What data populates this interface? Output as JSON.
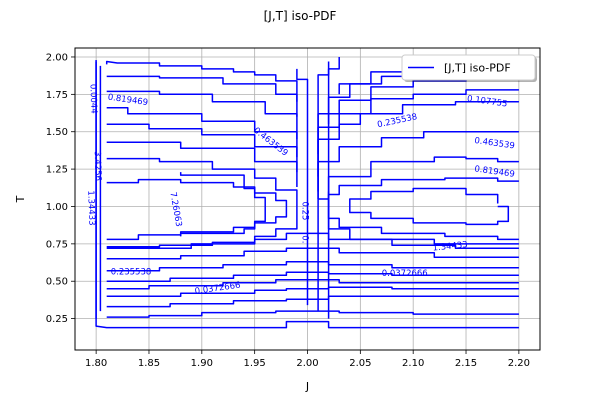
{
  "chart_data": {
    "type": "contour",
    "title": "[J,T] iso-PDF",
    "xlabel": "J",
    "ylabel": "T",
    "xlim": [
      1.78,
      2.22
    ],
    "ylim": [
      0.04,
      2.06
    ],
    "x_ticks": [
      "1.80",
      "1.85",
      "1.90",
      "1.95",
      "2.00",
      "2.05",
      "2.10",
      "2.15",
      "2.20"
    ],
    "y_ticks": [
      "0.25",
      "0.50",
      "0.75",
      "1.00",
      "1.25",
      "1.50",
      "1.75",
      "2.00"
    ],
    "grid": true,
    "legend": {
      "position": "top-right",
      "entries": [
        "[J,T] iso-PDF"
      ]
    },
    "series_color": "#0000ff",
    "contour_labels": [
      {
        "text": "0.819469",
        "x": 1.83,
        "y": 1.71,
        "angle": 8
      },
      {
        "text": "0.107755",
        "x": 2.17,
        "y": 1.7,
        "angle": 8
      },
      {
        "text": "0.463539",
        "x": 1.965,
        "y": 1.43,
        "angle": 38
      },
      {
        "text": "0.235538",
        "x": 2.085,
        "y": 1.57,
        "angle": -12
      },
      {
        "text": "0.463539",
        "x": 2.177,
        "y": 1.42,
        "angle": 8
      },
      {
        "text": "0.819469",
        "x": 2.177,
        "y": 1.23,
        "angle": 8
      },
      {
        "text": "7.26063",
        "x": 1.875,
        "y": 0.98,
        "angle": 80
      },
      {
        "text": "1.34433",
        "x": 2.135,
        "y": 0.73,
        "angle": -6
      },
      {
        "text": "0.235538",
        "x": 1.833,
        "y": 0.56,
        "angle": 0
      },
      {
        "text": "0.0372666",
        "x": 1.915,
        "y": 0.45,
        "angle": -8
      },
      {
        "text": "0.0372666",
        "x": 2.092,
        "y": 0.55,
        "angle": 0
      },
      {
        "text": "1.34433",
        "x": 1.795,
        "y": 0.99,
        "angle": 88
      },
      {
        "text": "3.4256",
        "x": 1.801,
        "y": 1.27,
        "angle": 88
      },
      {
        "text": "0.0044",
        "x": 1.797,
        "y": 1.72,
        "angle": 88
      },
      {
        "text": "0.25",
        "x": 1.997,
        "y": 0.97,
        "angle": 90
      },
      {
        "text": "0.",
        "x": 1.997,
        "y": 0.78,
        "angle": 90
      }
    ],
    "contours": [
      {
        "x": [
          1.8,
          1.8,
          1.81,
          1.98,
          1.98,
          2.02,
          2.02,
          2.2
        ],
        "y": [
          1.97,
          0.2,
          0.19,
          0.19,
          0.23,
          0.23,
          0.19,
          0.19
        ]
      },
      {
        "x": [
          1.81,
          1.85,
          1.85,
          1.9,
          1.9,
          1.97,
          1.97,
          2.03,
          2.03,
          2.1,
          2.1,
          2.2
        ],
        "y": [
          0.26,
          0.26,
          0.27,
          0.27,
          0.29,
          0.29,
          0.3,
          0.3,
          0.29,
          0.29,
          0.28,
          0.28
        ]
      },
      {
        "x": [
          1.81,
          1.87,
          1.87,
          1.93,
          1.93,
          1.98,
          1.98,
          2.02,
          2.02,
          2.2
        ],
        "y": [
          0.33,
          0.33,
          0.35,
          0.35,
          0.37,
          0.37,
          0.38,
          0.38,
          0.4,
          0.4
        ]
      },
      {
        "x": [
          1.81,
          1.88,
          1.88,
          1.95,
          1.95,
          1.98,
          1.98,
          2.02,
          2.02,
          2.08,
          2.08,
          2.2
        ],
        "y": [
          0.4,
          0.4,
          0.42,
          0.42,
          0.44,
          0.44,
          0.45,
          0.45,
          0.46,
          0.46,
          0.45,
          0.45
        ]
      },
      {
        "x": [
          1.81,
          1.85,
          1.85,
          1.92,
          1.92,
          1.97,
          1.97,
          2.03,
          2.03,
          2.2
        ],
        "y": [
          0.45,
          0.45,
          0.47,
          0.47,
          0.49,
          0.49,
          0.51,
          0.51,
          0.49,
          0.49
        ]
      },
      {
        "x": [
          1.81,
          1.87,
          1.87,
          1.93,
          1.93,
          1.98,
          1.98,
          2.02,
          2.02,
          2.08,
          2.08,
          2.2
        ],
        "y": [
          0.5,
          0.5,
          0.52,
          0.52,
          0.54,
          0.54,
          0.56,
          0.56,
          0.55,
          0.55,
          0.54,
          0.54
        ]
      },
      {
        "x": [
          1.81,
          1.86,
          1.86,
          1.92,
          1.92,
          1.98,
          1.98,
          2.02,
          2.02,
          2.08,
          2.08,
          2.2
        ],
        "y": [
          0.57,
          0.57,
          0.59,
          0.59,
          0.61,
          0.61,
          0.63,
          0.63,
          0.61,
          0.61,
          0.59,
          0.59
        ]
      },
      {
        "x": [
          1.81,
          1.88,
          1.88,
          1.94,
          1.94,
          1.98,
          1.98,
          2.03,
          2.03,
          2.12,
          2.12,
          2.2
        ],
        "y": [
          0.65,
          0.65,
          0.67,
          0.67,
          0.7,
          0.7,
          0.72,
          0.72,
          0.69,
          0.69,
          0.66,
          0.66
        ]
      },
      {
        "x": [
          1.81,
          1.89,
          1.89,
          1.95,
          1.95,
          1.98,
          1.98,
          2.02,
          2.02,
          2.12,
          2.12,
          2.2
        ],
        "y": [
          0.72,
          0.72,
          0.75,
          0.75,
          0.78,
          0.78,
          0.82,
          0.82,
          0.78,
          0.78,
          0.75,
          0.75
        ]
      },
      {
        "x": [
          1.81,
          1.88,
          1.88,
          1.95,
          1.95,
          1.99,
          1.99
        ],
        "y": [
          1.43,
          1.43,
          1.39,
          1.39,
          1.3,
          1.3,
          1.13
        ]
      },
      {
        "x": [
          1.81,
          1.85,
          1.85,
          1.9,
          1.9,
          1.95,
          1.95,
          1.99,
          1.99
        ],
        "y": [
          1.55,
          1.55,
          1.52,
          1.52,
          1.48,
          1.48,
          1.4,
          1.4,
          1.23
        ]
      },
      {
        "x": [
          1.81,
          1.83,
          1.83,
          1.9,
          1.9,
          1.95,
          1.95,
          1.99,
          1.99
        ],
        "y": [
          1.66,
          1.66,
          1.62,
          1.62,
          1.57,
          1.57,
          1.5,
          1.5,
          1.33
        ]
      },
      {
        "x": [
          1.81,
          1.86,
          1.86,
          1.91,
          1.91,
          1.96,
          1.96,
          1.99,
          1.99
        ],
        "y": [
          1.77,
          1.77,
          1.75,
          1.75,
          1.7,
          1.7,
          1.62,
          1.62,
          1.45
        ]
      },
      {
        "x": [
          1.81,
          1.86,
          1.86,
          1.92,
          1.92,
          1.97,
          1.97,
          1.99,
          1.99
        ],
        "y": [
          1.87,
          1.87,
          1.86,
          1.86,
          1.82,
          1.82,
          1.75,
          1.75,
          1.6
        ]
      },
      {
        "x": [
          1.81,
          1.81,
          1.82,
          1.86,
          1.86,
          1.9,
          1.9,
          1.93,
          1.93,
          1.95,
          1.95,
          1.97,
          1.97,
          1.99,
          1.99
        ],
        "y": [
          1.95,
          1.97,
          1.96,
          1.96,
          1.94,
          1.94,
          1.92,
          1.92,
          1.9,
          1.9,
          1.88,
          1.88,
          1.84,
          1.84,
          1.7
        ]
      },
      {
        "x": [
          1.88,
          1.88,
          1.94,
          1.94,
          1.95,
          1.95,
          1.96,
          1.96,
          1.95,
          1.95,
          1.94,
          1.94,
          1.88,
          1.88
        ],
        "y": [
          1.23,
          1.21,
          1.21,
          1.12,
          1.12,
          1.06,
          1.06,
          0.9,
          0.9,
          0.85,
          0.85,
          0.82,
          0.82,
          0.8
        ]
      },
      {
        "x": [
          1.81,
          1.84,
          1.84,
          1.88,
          1.88,
          1.93,
          1.93,
          1.95,
          1.95,
          1.97,
          1.97,
          1.98,
          1.98,
          1.97,
          1.97,
          1.95,
          1.95,
          1.93,
          1.93,
          1.88,
          1.88,
          1.84,
          1.84,
          1.81
        ],
        "y": [
          1.16,
          1.16,
          1.18,
          1.18,
          1.16,
          1.16,
          1.13,
          1.13,
          1.09,
          1.09,
          1.04,
          1.04,
          0.93,
          0.93,
          0.89,
          0.89,
          0.86,
          0.86,
          0.83,
          0.83,
          0.81,
          0.81,
          0.78,
          0.78
        ]
      },
      {
        "x": [
          1.81,
          1.86,
          1.86,
          1.91,
          1.91,
          1.95,
          1.95,
          1.97,
          1.97,
          1.99,
          1.99,
          1.97,
          1.97,
          1.95,
          1.95,
          1.91,
          1.91,
          1.86,
          1.86,
          1.81
        ],
        "y": [
          1.32,
          1.32,
          1.3,
          1.3,
          1.25,
          1.25,
          1.19,
          1.19,
          1.11,
          1.11,
          0.85,
          0.85,
          0.8,
          0.8,
          0.76,
          0.76,
          0.74,
          0.74,
          0.73,
          0.73
        ]
      },
      {
        "x": [
          1.99,
          1.99,
          2.0,
          2.0
        ],
        "y": [
          1.92,
          1.85,
          1.85,
          0.34
        ]
      },
      {
        "x": [
          2.02,
          2.02,
          2.01,
          2.01
        ],
        "y": [
          1.97,
          1.88,
          1.88,
          0.3
        ]
      },
      {
        "x": [
          2.03,
          2.03,
          2.02,
          2.02
        ],
        "y": [
          2.0,
          1.92,
          1.92,
          0.25
        ]
      },
      {
        "x": [
          2.01,
          2.01,
          2.03,
          2.03,
          2.05,
          2.05,
          2.09,
          2.09,
          2.14,
          2.14,
          2.2
        ],
        "y": [
          1.1,
          1.45,
          1.45,
          1.55,
          1.55,
          1.62,
          1.62,
          1.68,
          1.68,
          1.7,
          1.7
        ]
      },
      {
        "x": [
          2.01,
          2.01,
          2.03,
          2.03,
          2.06,
          2.06,
          2.1,
          2.1,
          2.15,
          2.15,
          2.2
        ],
        "y": [
          1.2,
          1.53,
          1.53,
          1.62,
          1.62,
          1.72,
          1.72,
          1.75,
          1.75,
          1.78,
          1.78
        ]
      },
      {
        "x": [
          2.01,
          2.01,
          2.03,
          2.03,
          2.06,
          2.06,
          2.1,
          2.1,
          2.15,
          2.15,
          2.2
        ],
        "y": [
          1.35,
          1.62,
          1.62,
          1.71,
          1.71,
          1.8,
          1.8,
          1.84,
          1.84,
          1.86,
          1.86
        ]
      },
      {
        "x": [
          2.02,
          2.02,
          2.04,
          2.04,
          2.07,
          2.07,
          2.12,
          2.12,
          2.2
        ],
        "y": [
          1.55,
          1.73,
          1.73,
          1.82,
          1.82,
          1.87,
          1.87,
          1.92,
          1.92
        ]
      },
      {
        "x": [
          2.03,
          2.03,
          2.06,
          2.06,
          2.1,
          2.1,
          2.14,
          2.14
        ],
        "y": [
          1.75,
          1.82,
          1.82,
          1.9,
          1.9,
          1.94,
          1.94,
          1.96
        ]
      },
      {
        "x": [
          2.01,
          2.01,
          2.03,
          2.03,
          2.07,
          2.07,
          2.11,
          2.11,
          2.16,
          2.16,
          2.2
        ],
        "y": [
          1.05,
          1.3,
          1.3,
          1.4,
          1.4,
          1.46,
          1.46,
          1.5,
          1.5,
          1.5,
          1.5
        ]
      },
      {
        "x": [
          2.01,
          2.02,
          2.02,
          2.06,
          2.06,
          2.12,
          2.12,
          2.15,
          2.15,
          2.18,
          2.18,
          2.2
        ],
        "y": [
          1.05,
          1.05,
          1.2,
          1.2,
          1.3,
          1.3,
          1.33,
          1.33,
          1.32,
          1.32,
          1.3,
          1.3
        ]
      },
      {
        "x": [
          2.2,
          2.18,
          2.18,
          2.13,
          2.13,
          2.07,
          2.07,
          2.03,
          2.03,
          2.02,
          2.02,
          2.03,
          2.03,
          2.07,
          2.07,
          2.13,
          2.13,
          2.18,
          2.18,
          2.2
        ],
        "y": [
          1.17,
          1.17,
          1.19,
          1.19,
          1.18,
          1.18,
          1.14,
          1.14,
          1.08,
          1.08,
          0.92,
          0.92,
          0.86,
          0.86,
          0.82,
          0.82,
          0.8,
          0.8,
          0.78,
          0.78
        ]
      },
      {
        "x": [
          2.18,
          2.18,
          2.15,
          2.15,
          2.1,
          2.1,
          2.06,
          2.06,
          2.04,
          2.04,
          2.06,
          2.06,
          2.1,
          2.1,
          2.15,
          2.15,
          2.18,
          2.18,
          2.19,
          2.19,
          2.18
        ],
        "y": [
          1.02,
          1.08,
          1.08,
          1.12,
          1.12,
          1.1,
          1.1,
          1.05,
          1.05,
          0.96,
          0.96,
          0.92,
          0.92,
          0.89,
          0.89,
          0.88,
          0.88,
          0.9,
          0.9,
          1.0,
          1.0
        ]
      },
      {
        "x": [
          2.02,
          2.02,
          2.04,
          2.04,
          2.08,
          2.08,
          2.14,
          2.14,
          2.2
        ],
        "y": [
          1.1,
          0.85,
          0.85,
          0.78,
          0.78,
          0.74,
          0.74,
          0.72,
          0.72
        ]
      },
      {
        "x": [
          1.8,
          1.8
        ],
        "y": [
          1.98,
          0.25
        ]
      },
      {
        "x": [
          1.804,
          1.804
        ],
        "y": [
          1.94,
          0.3
        ]
      }
    ]
  }
}
